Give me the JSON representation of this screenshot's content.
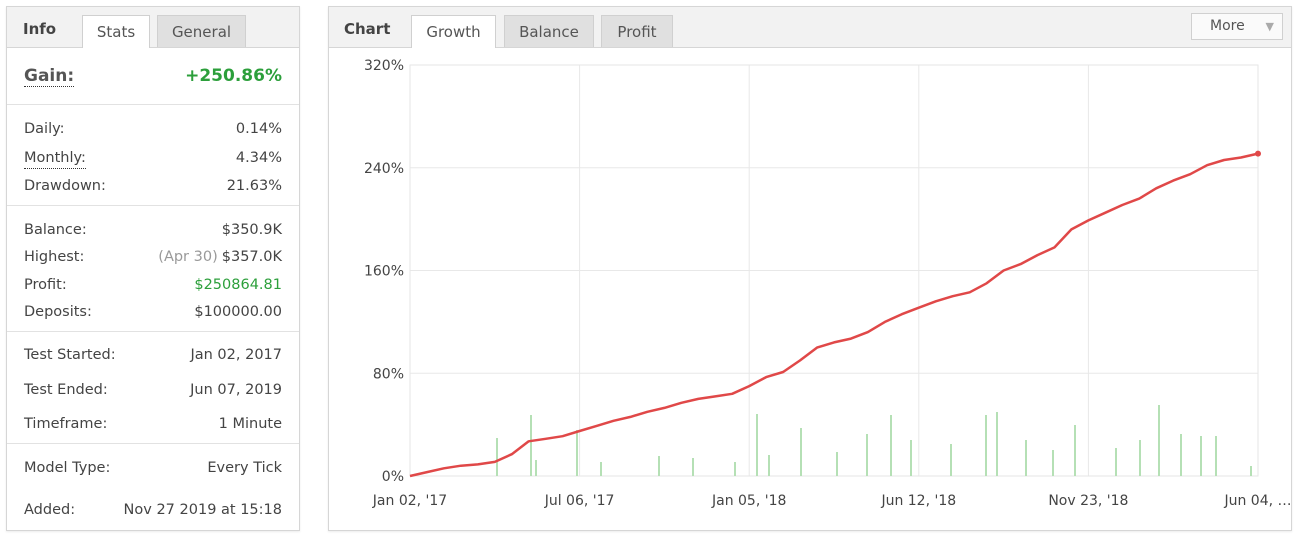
{
  "info_panel": {
    "tabs": [
      "Info",
      "Stats",
      "General"
    ],
    "gain_label": "Gain:",
    "gain_value": "+250.86%",
    "sections": [
      [
        {
          "label": "Daily:",
          "value": "0.14%"
        },
        {
          "label": "Monthly:",
          "value": "4.34%"
        },
        {
          "label": "Drawdown:",
          "value": "21.63%"
        }
      ],
      [
        {
          "label": "Balance:",
          "value": "$350.9K"
        },
        {
          "label": "Highest:",
          "note": "(Apr 30)",
          "value": "$357.0K"
        },
        {
          "label": "Profit:",
          "value": "$250864.81"
        },
        {
          "label": "Deposits:",
          "value": "$100000.00"
        }
      ],
      [
        {
          "label": "Test Started:",
          "value": "Jan 02, 2017"
        },
        {
          "label": "Test Ended:",
          "value": "Jun 07, 2019"
        },
        {
          "label": "Timeframe:",
          "value": "1 Minute"
        }
      ],
      [
        {
          "label": "Model Type:",
          "value": "Every Tick"
        },
        {
          "label": "Added:",
          "value": "Nov 27 2019 at 15:18"
        }
      ]
    ]
  },
  "chart_panel": {
    "title": "Chart",
    "tabs": [
      "Growth",
      "Balance",
      "Profit"
    ],
    "more": "More"
  },
  "chart_data": {
    "type": "line",
    "categories": [
      "Jan 02, '17",
      null,
      null,
      null,
      null,
      null,
      null,
      null,
      null,
      null,
      "Jul 06, '17",
      null,
      null,
      null,
      null,
      null,
      null,
      null,
      null,
      null,
      "Jan 05, '18",
      null,
      null,
      null,
      null,
      null,
      null,
      null,
      null,
      null,
      "Jun 12, '18",
      null,
      null,
      null,
      null,
      null,
      null,
      null,
      null,
      null,
      "Nov 23, '18",
      null,
      null,
      null,
      null,
      null,
      null,
      null,
      null,
      null,
      "Jun 04, …"
    ],
    "values": [
      0,
      3,
      6,
      8,
      9,
      11,
      17,
      27,
      29,
      31,
      35,
      39,
      43,
      46,
      50,
      53,
      57,
      60,
      62,
      64,
      70,
      77,
      81,
      90,
      100,
      104,
      107,
      112,
      120,
      126,
      131,
      136,
      140,
      143,
      150,
      160,
      165,
      172,
      178,
      192,
      199,
      205,
      211,
      216,
      224,
      230,
      235,
      242,
      246,
      248,
      251
    ],
    "color": "#e04848",
    "ylim": [
      0,
      320
    ],
    "yticks": [
      {
        "value": 0,
        "label": "0%"
      },
      {
        "value": 80,
        "label": "80%"
      },
      {
        "value": 160,
        "label": "160%"
      },
      {
        "value": 240,
        "label": "240%"
      },
      {
        "value": 320,
        "label": "320%"
      }
    ],
    "grid": true
  }
}
